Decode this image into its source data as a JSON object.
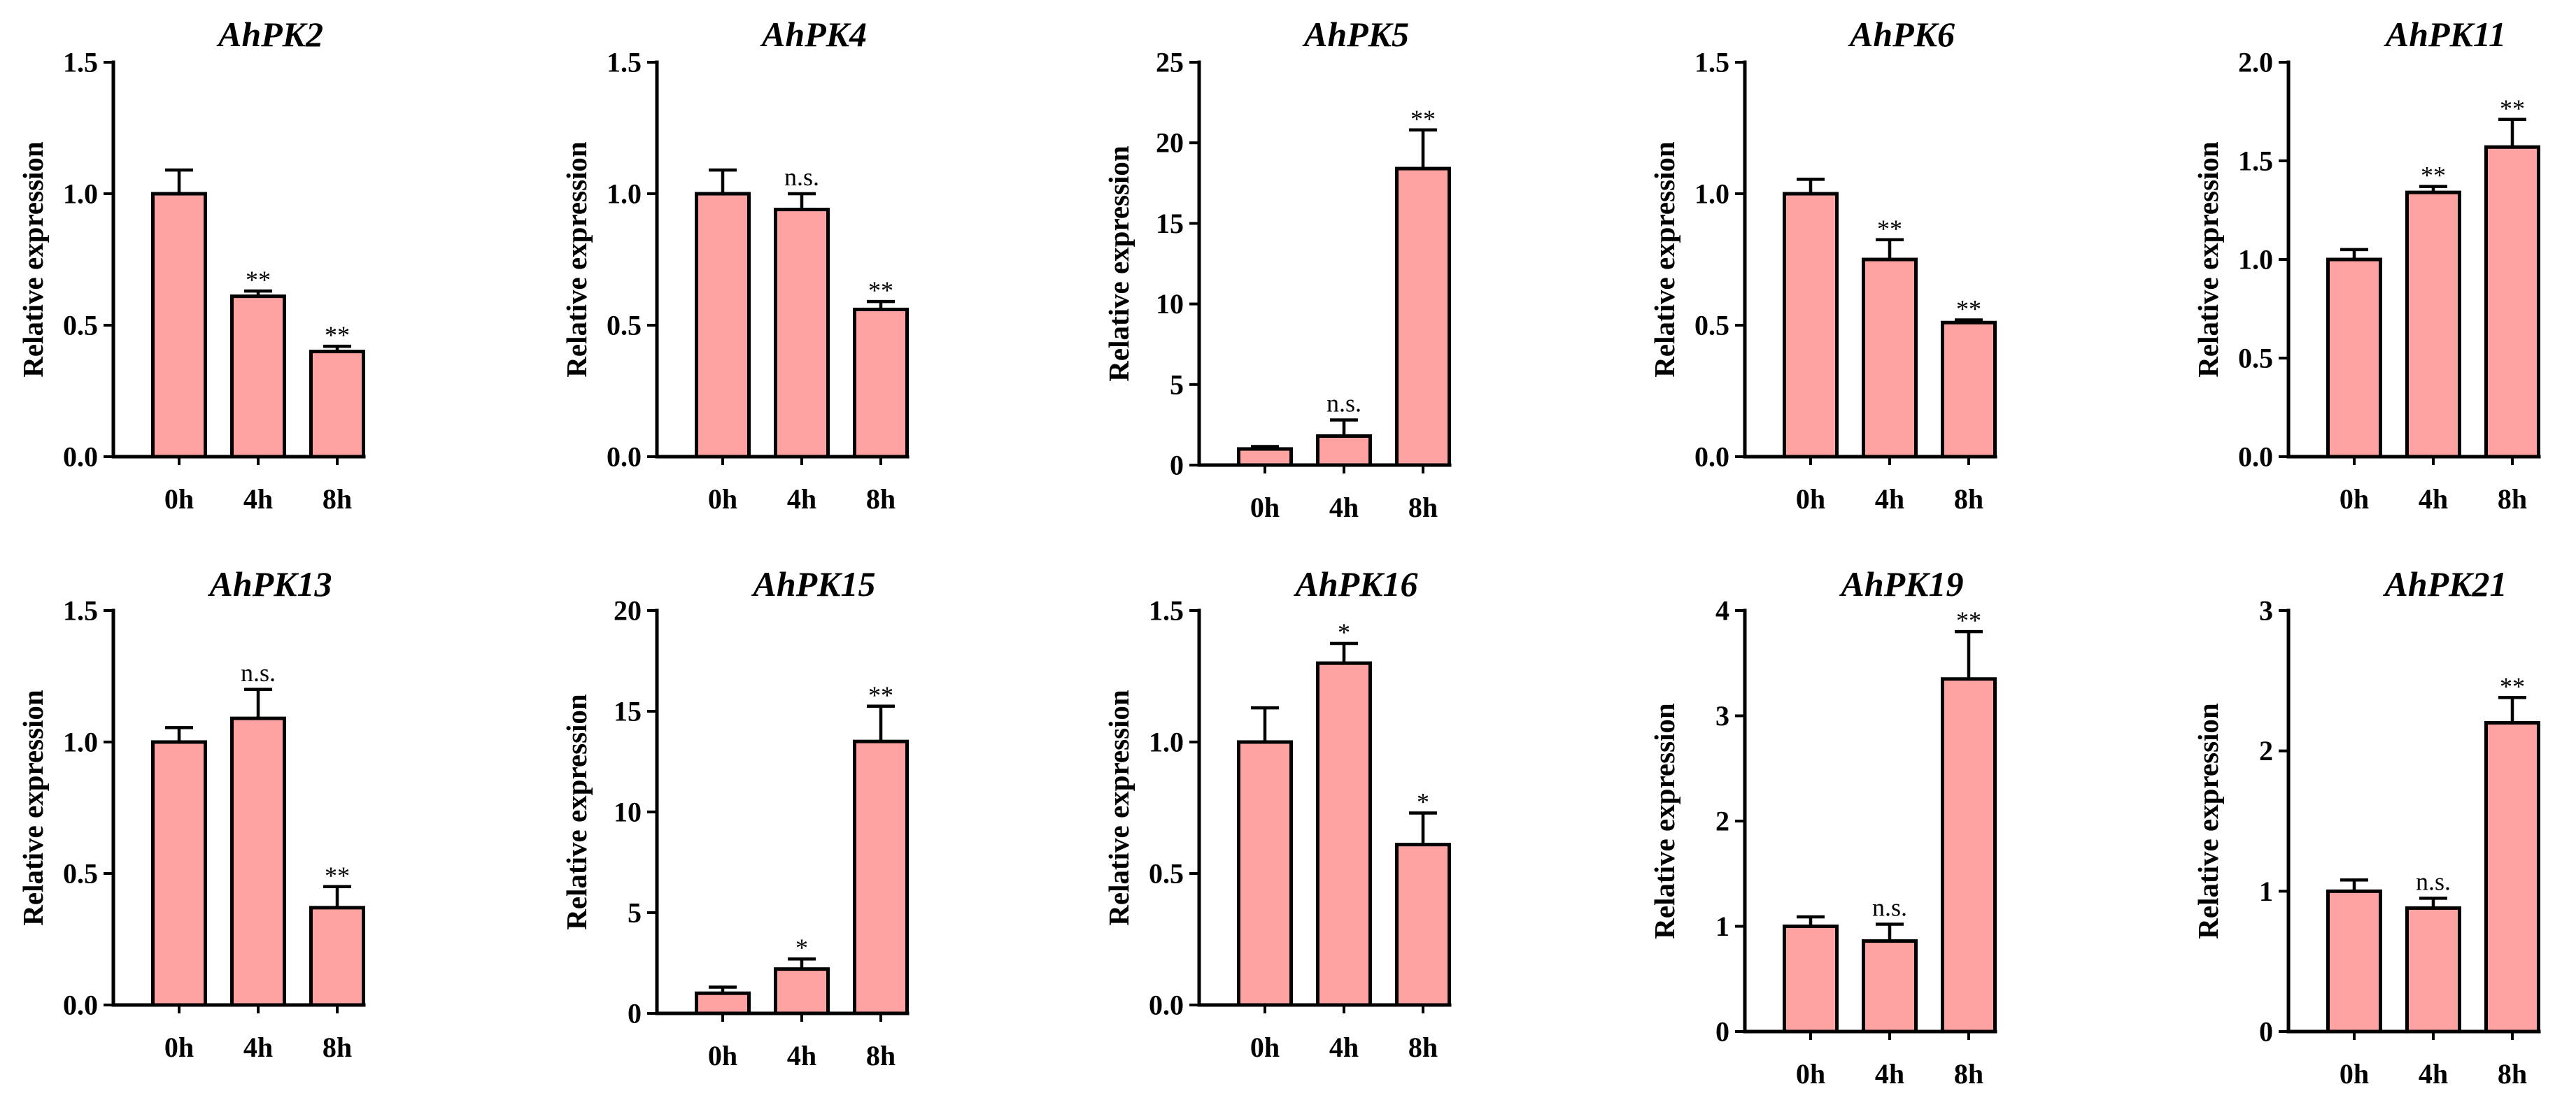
{
  "colors": {
    "bar_fill": "#FFA2A2",
    "bar_stroke": "#000000",
    "axis": "#000000"
  },
  "chart_data": [
    {
      "type": "bar",
      "title": "AhPK2",
      "ylabel": "Relative expression",
      "categories": [
        "0h",
        "4h",
        "8h"
      ],
      "values": [
        1.0,
        0.61,
        0.4
      ],
      "errors": [
        0.09,
        0.02,
        0.02
      ],
      "significance": [
        "",
        "**",
        "**"
      ],
      "ylim": [
        0,
        1.5
      ],
      "yticks": [
        "0.0",
        "0.5",
        "1.0",
        "1.5"
      ]
    },
    {
      "type": "bar",
      "title": "AhPK4",
      "ylabel": "Relative expression",
      "categories": [
        "0h",
        "4h",
        "8h"
      ],
      "values": [
        1.0,
        0.94,
        0.56
      ],
      "errors": [
        0.09,
        0.06,
        0.03
      ],
      "significance": [
        "",
        "n.s.",
        "**"
      ],
      "ylim": [
        0,
        1.5
      ],
      "yticks": [
        "0.0",
        "0.5",
        "1.0",
        "1.5"
      ]
    },
    {
      "type": "bar",
      "title": "AhPK5",
      "ylabel": "Relative expression",
      "categories": [
        "0h",
        "4h",
        "8h"
      ],
      "values": [
        1.0,
        1.8,
        18.4
      ],
      "errors": [
        0.15,
        1.0,
        2.4
      ],
      "significance": [
        "",
        "n.s.",
        "**"
      ],
      "ylim": [
        0,
        25
      ],
      "yticks": [
        "0",
        "5",
        "10",
        "15",
        "20",
        "25"
      ]
    },
    {
      "type": "bar",
      "title": "AhPK6",
      "ylabel": "Relative expression",
      "categories": [
        "0h",
        "4h",
        "8h"
      ],
      "values": [
        1.0,
        0.75,
        0.51
      ],
      "errors": [
        0.055,
        0.075,
        0.01
      ],
      "significance": [
        "",
        "**",
        "**"
      ],
      "ylim": [
        0,
        1.5
      ],
      "yticks": [
        "0.0",
        "0.5",
        "1.0",
        "1.5"
      ]
    },
    {
      "type": "bar",
      "title": "AhPK11",
      "ylabel": "Relative expression",
      "categories": [
        "0h",
        "4h",
        "8h"
      ],
      "values": [
        1.0,
        1.34,
        1.57
      ],
      "errors": [
        0.05,
        0.03,
        0.14
      ],
      "significance": [
        "",
        "**",
        "**"
      ],
      "ylim": [
        0,
        2.0
      ],
      "yticks": [
        "0.0",
        "0.5",
        "1.0",
        "1.5",
        "2.0"
      ]
    },
    {
      "type": "bar",
      "title": "AhPK13",
      "ylabel": "Relative expression",
      "categories": [
        "0h",
        "4h",
        "8h"
      ],
      "values": [
        1.0,
        1.09,
        0.37
      ],
      "errors": [
        0.055,
        0.11,
        0.08
      ],
      "significance": [
        "",
        "n.s.",
        "**"
      ],
      "ylim": [
        0,
        1.5
      ],
      "yticks": [
        "0.0",
        "0.5",
        "1.0",
        "1.5"
      ]
    },
    {
      "type": "bar",
      "title": "AhPK15",
      "ylabel": "Relative expression",
      "categories": [
        "0h",
        "4h",
        "8h"
      ],
      "values": [
        1.0,
        2.2,
        13.5
      ],
      "errors": [
        0.3,
        0.5,
        1.75
      ],
      "significance": [
        "",
        "*",
        "**"
      ],
      "ylim": [
        0,
        20
      ],
      "yticks": [
        "0",
        "5",
        "10",
        "15",
        "20"
      ]
    },
    {
      "type": "bar",
      "title": "AhPK16",
      "ylabel": "Relative expression",
      "categories": [
        "0h",
        "4h",
        "8h"
      ],
      "values": [
        1.0,
        1.3,
        0.61
      ],
      "errors": [
        0.13,
        0.075,
        0.12
      ],
      "significance": [
        "",
        "*",
        "*"
      ],
      "ylim": [
        0,
        1.5
      ],
      "yticks": [
        "0.0",
        "0.5",
        "1.0",
        "1.5"
      ]
    },
    {
      "type": "bar",
      "title": "AhPK19",
      "ylabel": "Relative expression",
      "categories": [
        "0h",
        "4h",
        "8h"
      ],
      "values": [
        1.0,
        0.86,
        3.35
      ],
      "errors": [
        0.09,
        0.16,
        0.45
      ],
      "significance": [
        "",
        "n.s.",
        "**"
      ],
      "ylim": [
        0,
        4
      ],
      "yticks": [
        "0",
        "1",
        "2",
        "3",
        "4"
      ]
    },
    {
      "type": "bar",
      "title": "AhPK21",
      "ylabel": "Relative expression",
      "categories": [
        "0h",
        "4h",
        "8h"
      ],
      "values": [
        1.0,
        0.88,
        2.2
      ],
      "errors": [
        0.08,
        0.07,
        0.18
      ],
      "significance": [
        "",
        "n.s.",
        "**"
      ],
      "ylim": [
        0,
        3
      ],
      "yticks": [
        "0",
        "1",
        "2",
        "3"
      ]
    }
  ]
}
